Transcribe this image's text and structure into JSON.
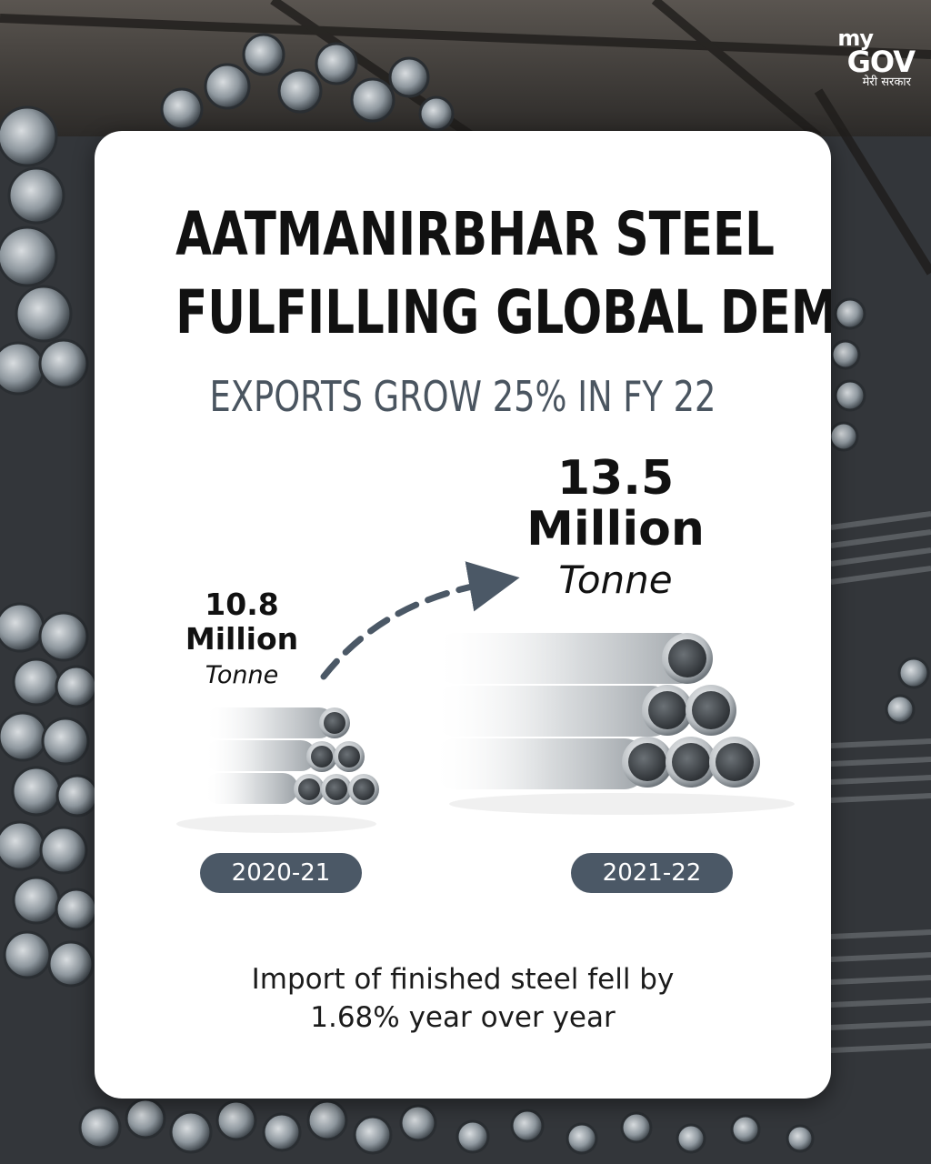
{
  "logo": {
    "my": "my",
    "gov": "GOV",
    "tagline": "मेरी सरकार"
  },
  "headline": {
    "line1": "AATMANIRBHAR STEEL",
    "line2": "FULFILLING GLOBAL DEMAND"
  },
  "subheadline": "EXPORTS GROW 25% IN FY 22",
  "exports": [
    {
      "value": "10.8",
      "unit": "Million",
      "measure": "Tonne",
      "year": "2020-21"
    },
    {
      "value": "13.5",
      "unit": "Million",
      "measure": "Tonne",
      "year": "2021-22"
    }
  ],
  "note": {
    "line1": "Import of finished steel fell by",
    "line2": "1.68% year over year"
  },
  "colors": {
    "card": "#ffffff",
    "pill": "#4b5866",
    "subhead": "#4a5560",
    "arrow": "#4b5866"
  },
  "icons": [
    "mygov-logo",
    "steel-pipes-small",
    "steel-pipes-large",
    "dashed-arrow-icon"
  ]
}
